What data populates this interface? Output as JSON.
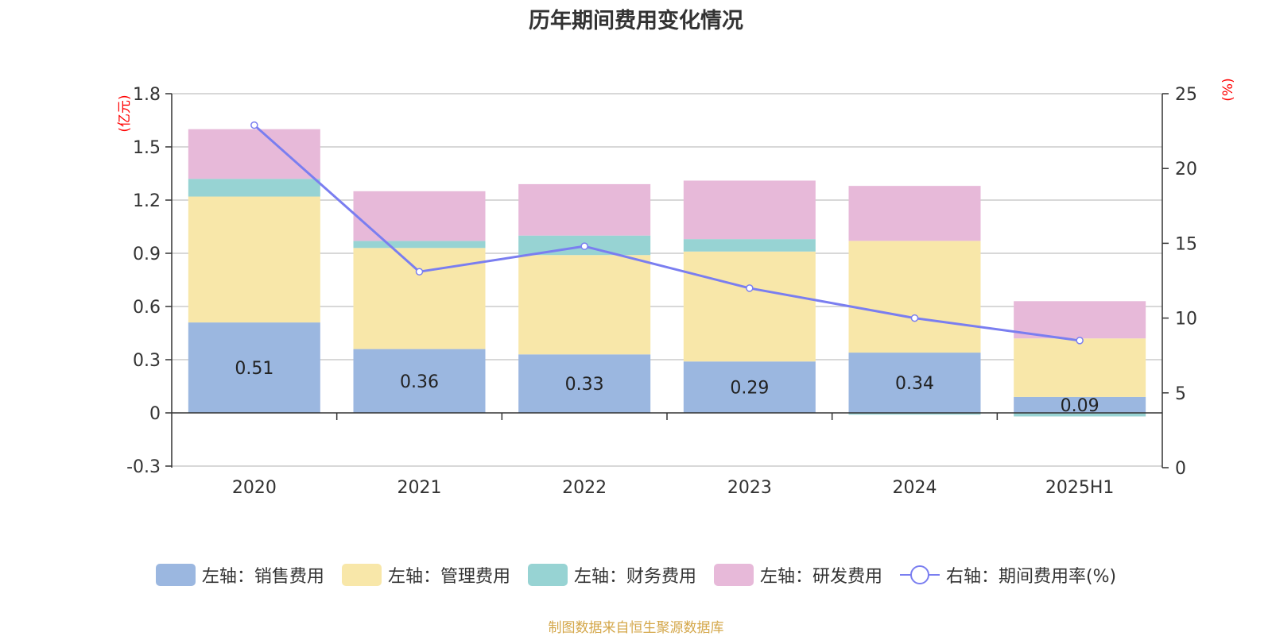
{
  "title": "历年期间费用变化情况",
  "source": "制图数据来自恒生聚源数据库",
  "colors": {
    "sales": "#9bb7e0",
    "admin": "#f8e7a9",
    "finance": "#97d3d3",
    "rd": "#e7b9d9",
    "rate": "#7a7ef0",
    "unit": "#ff0000"
  },
  "chart_data": {
    "type": "bar",
    "stacked": true,
    "categories": [
      "2020",
      "2021",
      "2022",
      "2023",
      "2024",
      "2025H1"
    ],
    "left_axis": {
      "unit": "(亿元)",
      "ylim": [
        -0.3,
        1.8
      ],
      "ticks": [
        "-0.3",
        "0",
        "0.3",
        "0.6",
        "0.9",
        "1.2",
        "1.5",
        "1.8"
      ]
    },
    "right_axis": {
      "unit": "(%)",
      "ylim": [
        0,
        25
      ],
      "ticks": [
        "0",
        "5",
        "10",
        "15",
        "20",
        "25"
      ]
    },
    "series": [
      {
        "name": "左轴：销售费用",
        "key": "sales",
        "axis": "left",
        "values": [
          0.51,
          0.36,
          0.33,
          0.29,
          0.34,
          0.09
        ],
        "labels": [
          "0.51",
          "0.36",
          "0.33",
          "0.29",
          "0.34",
          "0.09"
        ]
      },
      {
        "name": "左轴：管理费用",
        "key": "admin",
        "axis": "left",
        "values": [
          0.71,
          0.57,
          0.56,
          0.62,
          0.63,
          0.33
        ]
      },
      {
        "name": "左轴：财务费用",
        "key": "finance",
        "axis": "left",
        "values": [
          0.1,
          0.04,
          0.11,
          0.07,
          -0.01,
          -0.02
        ]
      },
      {
        "name": "左轴：研发费用",
        "key": "rd",
        "axis": "left",
        "values": [
          0.28,
          0.28,
          0.29,
          0.33,
          0.31,
          0.21
        ]
      },
      {
        "name": "右轴：期间费用率(%)",
        "key": "rate",
        "axis": "right",
        "type": "line",
        "values": [
          22.9,
          13.1,
          14.8,
          12.0,
          10.0,
          8.5
        ]
      }
    ],
    "grid": true,
    "legend_position": "bottom"
  }
}
